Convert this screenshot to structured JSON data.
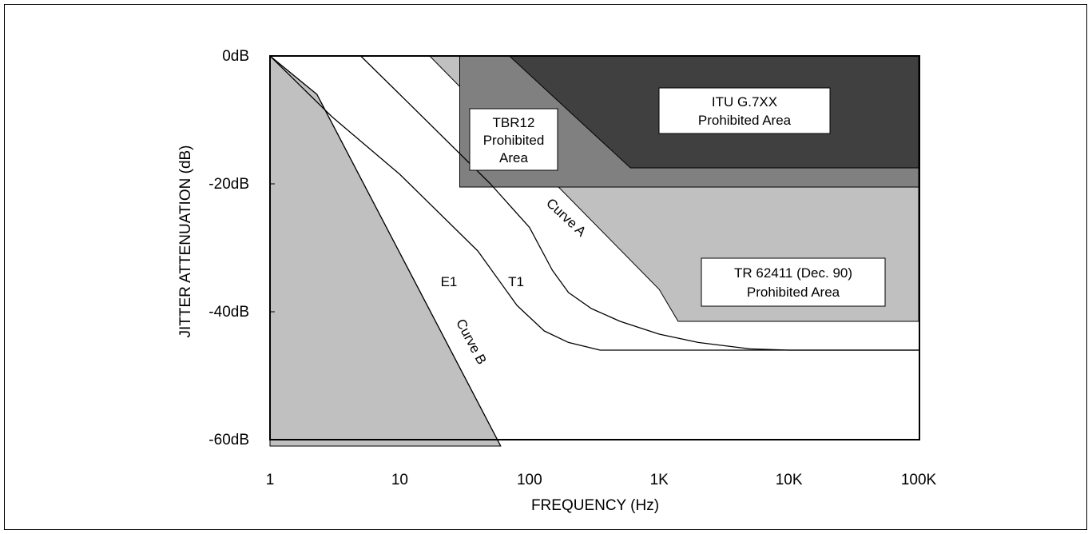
{
  "chart_data": {
    "type": "line",
    "xlabel": "FREQUENCY (Hz)",
    "ylabel": "JITTER ATTENUATION (dB)",
    "x_scale": "log",
    "xlim": [
      1,
      100000
    ],
    "ylim": [
      -60,
      0
    ],
    "x_ticks": [
      {
        "value": 1,
        "label": "1"
      },
      {
        "value": 10,
        "label": "10"
      },
      {
        "value": 100,
        "label": "100"
      },
      {
        "value": 1000,
        "label": "1K"
      },
      {
        "value": 10000,
        "label": "10K"
      },
      {
        "value": 100000,
        "label": "100K"
      }
    ],
    "y_ticks": [
      {
        "value": 0,
        "label": "0dB"
      },
      {
        "value": -20,
        "label": "-20dB"
      },
      {
        "value": -40,
        "label": "-40dB"
      },
      {
        "value": -60,
        "label": "-60dB"
      }
    ],
    "grid": false,
    "colors": {
      "tr62411": "#c0c0c0",
      "tbr12": "#808080",
      "itu": "#404040",
      "curve_b_region": "#c0c0c0",
      "line": "#000000"
    },
    "regions": [
      {
        "name": "TR 62411 (Dec. 90) Prohibited Area",
        "points": [
          [
            17,
            0
          ],
          [
            100000,
            0
          ],
          [
            100000,
            -41.5
          ],
          [
            1400,
            -41.5
          ],
          [
            1000,
            -36.5
          ],
          [
            17,
            0
          ]
        ]
      },
      {
        "name": "TBR12 Prohibited Area",
        "points": [
          [
            29,
            0
          ],
          [
            100000,
            0
          ],
          [
            100000,
            -20.5
          ],
          [
            29,
            -20.5
          ],
          [
            29,
            0
          ]
        ]
      },
      {
        "name": "ITU G.7XX Prohibited Area",
        "points": [
          [
            70,
            0
          ],
          [
            100000,
            0
          ],
          [
            100000,
            -17.5
          ],
          [
            600,
            -17.5
          ],
          [
            70,
            0
          ]
        ]
      },
      {
        "name": "Curve B",
        "points": [
          [
            1,
            0
          ],
          [
            2.3,
            -6
          ],
          [
            60,
            -61
          ],
          [
            1,
            -61
          ],
          [
            1,
            0
          ]
        ]
      }
    ],
    "series": [
      {
        "name": "Curve A",
        "x": [
          5,
          10,
          50,
          100,
          150,
          200,
          300,
          500,
          1000,
          2000,
          5000,
          10000,
          100000
        ],
        "y": [
          0,
          -6,
          -20,
          -26.8,
          -33.5,
          -37,
          -39.5,
          -41.5,
          -43.5,
          -44.8,
          -45.8,
          -46,
          -46
        ]
      },
      {
        "name": "Curve B",
        "x": [
          1,
          2.3,
          60
        ],
        "y": [
          0,
          -6,
          -61
        ]
      },
      {
        "name": "E1",
        "x": [
          1,
          3,
          10,
          40,
          80,
          130,
          200,
          350,
          1000,
          10000,
          100000
        ],
        "y": [
          0,
          -9.5,
          -18.5,
          -30.5,
          -39,
          -43,
          -44.8,
          -46,
          -46,
          -46,
          -46
        ]
      }
    ],
    "annotations": [
      {
        "id": "itu",
        "lines": [
          "ITU G.7XX",
          "Prohibited Area"
        ]
      },
      {
        "id": "tbr12",
        "lines": [
          "TBR12",
          "Prohibited",
          "Area"
        ]
      },
      {
        "id": "tr62411",
        "lines": [
          "TR 62411 (Dec. 90)",
          "Prohibited Area"
        ]
      },
      {
        "id": "curve_a",
        "text": "Curve A"
      },
      {
        "id": "curve_b",
        "text": "Curve B"
      },
      {
        "id": "e1",
        "text": "E1"
      },
      {
        "id": "t1",
        "text": "T1"
      }
    ]
  }
}
